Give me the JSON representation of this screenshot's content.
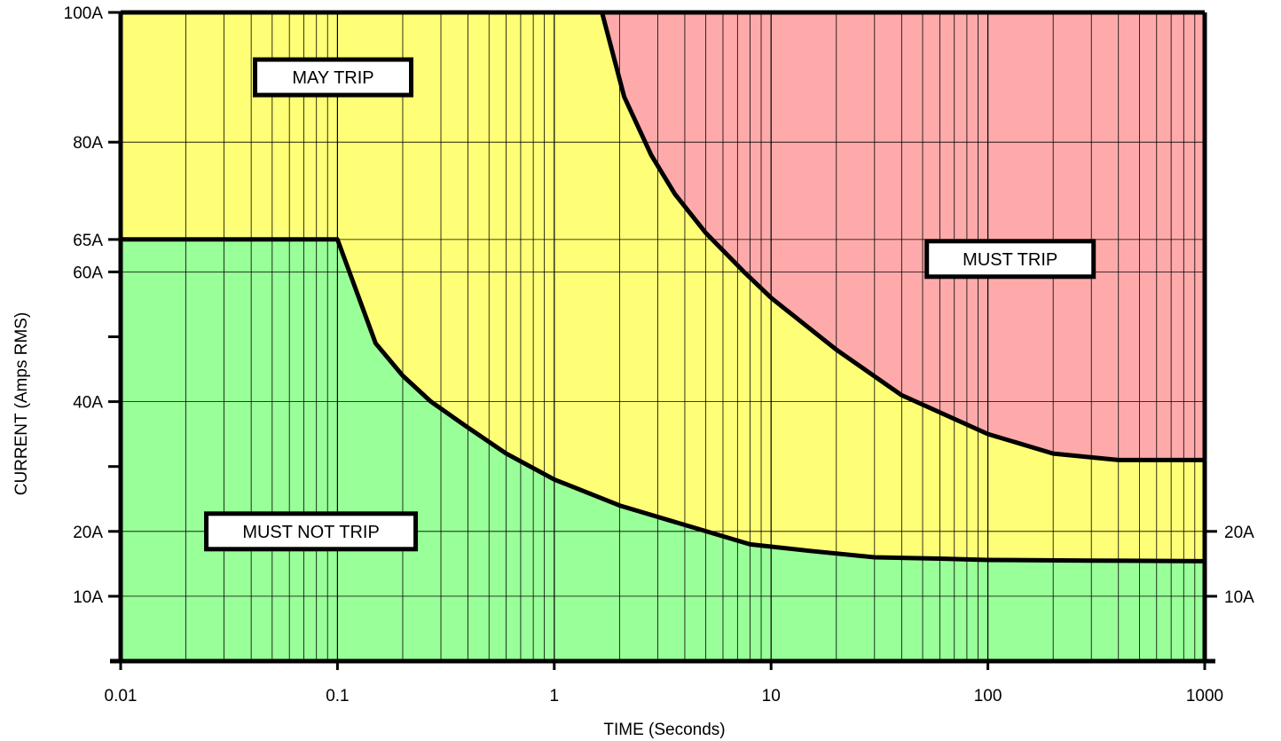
{
  "chart_data": {
    "type": "area",
    "title": "",
    "xlabel": "TIME (Seconds)",
    "ylabel": "CURRENT (Amps RMS)",
    "x_scale": "log",
    "xlim": [
      0.01,
      1000
    ],
    "ylim": [
      0,
      100
    ],
    "grid": true,
    "x_ticks": [
      {
        "value": 0.01,
        "label": "0.01"
      },
      {
        "value": 0.1,
        "label": "0.1"
      },
      {
        "value": 1,
        "label": "1"
      },
      {
        "value": 10,
        "label": "10"
      },
      {
        "value": 100,
        "label": "100"
      },
      {
        "value": 1000,
        "label": "1000"
      }
    ],
    "y_ticks": [
      {
        "value": 10,
        "label": "10A"
      },
      {
        "value": 20,
        "label": "20A"
      },
      {
        "value": 30,
        "label": ""
      },
      {
        "value": 40,
        "label": "40A"
      },
      {
        "value": 50,
        "label": ""
      },
      {
        "value": 60,
        "label": "60A"
      },
      {
        "value": 65,
        "label": "65A"
      },
      {
        "value": 80,
        "label": "80A"
      },
      {
        "value": 100,
        "label": "100A"
      }
    ],
    "right_labels": [
      {
        "value": 20,
        "label": "20A"
      },
      {
        "value": 10,
        "label": "10A"
      }
    ],
    "regions": [
      {
        "name": "MUST NOT TRIP",
        "color": "#99ff99"
      },
      {
        "name": "MAY TRIP",
        "color": "#ffff77"
      },
      {
        "name": "MUST TRIP",
        "color": "#ffaaaa"
      }
    ],
    "annotations": [
      {
        "text": "MAY TRIP",
        "x": 0.0955,
        "y": 90
      },
      {
        "text": "MUST TRIP",
        "x": 126.7,
        "y": 62
      },
      {
        "text": "MUST NOT TRIP",
        "x": 0.0755,
        "y": 20
      }
    ],
    "series": [
      {
        "curve": "lower",
        "points": [
          [
            0.01,
            65
          ],
          [
            0.1,
            65
          ],
          [
            0.15,
            49
          ],
          [
            0.2,
            44
          ],
          [
            0.27,
            40
          ],
          [
            0.4,
            36
          ],
          [
            0.6,
            32
          ],
          [
            1,
            28
          ],
          [
            2,
            24
          ],
          [
            4,
            21
          ],
          [
            8,
            18
          ],
          [
            15,
            17
          ],
          [
            30,
            16
          ],
          [
            60,
            15.8
          ],
          [
            100,
            15.6
          ],
          [
            300,
            15.5
          ],
          [
            1000,
            15.4
          ]
        ]
      },
      {
        "curve": "upper",
        "points": [
          [
            1.66,
            100
          ],
          [
            2.1,
            87
          ],
          [
            2.8,
            78
          ],
          [
            3.6,
            72
          ],
          [
            5,
            66
          ],
          [
            7.5,
            60
          ],
          [
            10,
            56
          ],
          [
            20,
            48
          ],
          [
            40,
            41
          ],
          [
            100,
            35
          ],
          [
            200,
            32
          ],
          [
            400,
            31
          ],
          [
            1000,
            31
          ]
        ]
      }
    ]
  }
}
